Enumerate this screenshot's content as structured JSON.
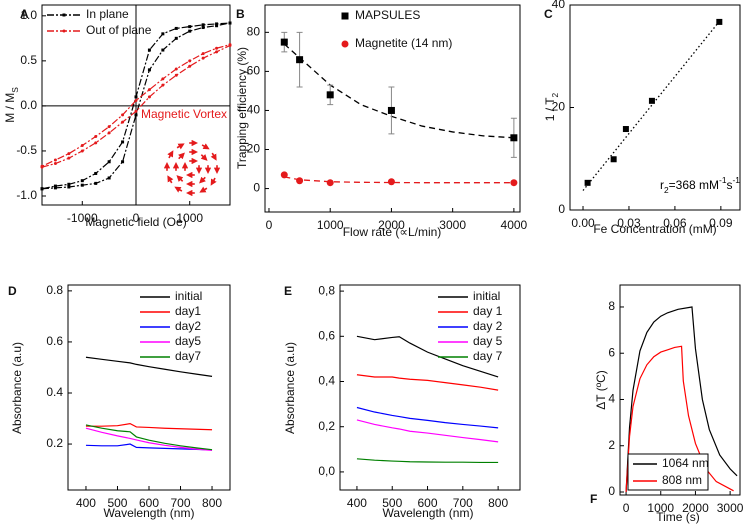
{
  "chart_data": [
    {
      "type": "line",
      "panel": "A",
      "xlabel": "Magnetic field (Oe)",
      "ylabel": [
        {
          "t": "M / M"
        },
        {
          "t": "S",
          "s": "sub"
        }
      ],
      "xlim": [
        -1750,
        1750
      ],
      "ylim": [
        -1.1,
        1.12
      ],
      "xticks": [
        -1000,
        0,
        1000
      ],
      "yticks": [
        {
          "value": -1,
          "label": "-1.0"
        },
        -0.5,
        {
          "value": 0,
          "label": "0.0"
        },
        0.5,
        {
          "value": 1,
          "label": "1.0"
        }
      ],
      "zero_lines": true,
      "annotation": {
        "text": "Magnetic Vortex",
        "color": "#e41a1c"
      },
      "x": [
        -1750,
        -1500,
        -1250,
        -1000,
        -750,
        -500,
        -250,
        0,
        250,
        500,
        750,
        1000,
        1250,
        1500,
        1750,
        1750,
        1500,
        1250,
        1000,
        750,
        500,
        250,
        0,
        -250,
        -500,
        -750,
        -1000,
        -1250,
        -1500,
        -1750
      ],
      "series": [
        {
          "name": "In plane",
          "color": "#000000",
          "line": "dashdot",
          "marker": "square",
          "values": [
            -0.92,
            -0.91,
            -0.9,
            -0.88,
            -0.86,
            -0.8,
            -0.62,
            -0.1,
            0.4,
            0.62,
            0.75,
            0.83,
            0.87,
            0.89,
            0.92,
            0.92,
            0.91,
            0.9,
            0.88,
            0.86,
            0.8,
            0.62,
            0.1,
            -0.4,
            -0.62,
            -0.75,
            -0.83,
            -0.87,
            -0.89,
            -0.92
          ]
        },
        {
          "name": "Out of plane",
          "color": "#e41a1c",
          "line": "dashdot",
          "marker": "circle",
          "values": [
            -0.68,
            -0.64,
            -0.58,
            -0.5,
            -0.41,
            -0.3,
            -0.18,
            -0.06,
            0.1,
            0.23,
            0.34,
            0.44,
            0.53,
            0.6,
            0.67,
            0.68,
            0.64,
            0.58,
            0.5,
            0.41,
            0.3,
            0.18,
            0.06,
            -0.1,
            -0.23,
            -0.34,
            -0.44,
            -0.53,
            -0.6,
            -0.67
          ]
        }
      ]
    },
    {
      "type": "scatter",
      "panel": "B",
      "xlabel": "Flow rate (∝L/min)",
      "ylabel": "Trapping efficiency (%)",
      "xlim": [
        -65,
        4100
      ],
      "ylim": [
        -12,
        94
      ],
      "xticks": [
        0,
        1000,
        2000,
        3000,
        4000
      ],
      "yticks": [
        0,
        20,
        40,
        60,
        80
      ],
      "series": [
        {
          "name": "MAPSULES",
          "color": "#000000",
          "line": "none",
          "marker": "square",
          "x": [
            250,
            500,
            1000,
            2000,
            4000
          ],
          "values": [
            75,
            66,
            48,
            40,
            26
          ],
          "errors": [
            5,
            14,
            5,
            12,
            10
          ]
        },
        {
          "name": "Magnetite (14 nm)",
          "color": "#e41a1c",
          "line": "none",
          "marker": "circle",
          "x": [
            250,
            500,
            1000,
            2000,
            4000
          ],
          "values": [
            7,
            4,
            3,
            3.5,
            3
          ]
        }
      ],
      "fits": [
        {
          "color": "#000000",
          "line": "dash",
          "x": [
            250,
            500,
            1000,
            1500,
            2000,
            2500,
            3000,
            3500,
            4000
          ],
          "values": [
            74,
            67,
            53,
            43,
            37,
            32,
            29,
            27,
            26
          ]
        },
        {
          "color": "#e41a1c",
          "line": "dash",
          "x": [
            250,
            500,
            1000,
            1500,
            2000,
            2500,
            3000,
            3500,
            4000
          ],
          "values": [
            6,
            4.5,
            3.5,
            3.2,
            3.1,
            3,
            3,
            3,
            3
          ]
        }
      ]
    },
    {
      "type": "scatter",
      "panel": "C",
      "xlabel": "Fe Concentration (mM)",
      "ylabel": [
        {
          "t": "1 / T"
        },
        {
          "t": "2",
          "s": "sub"
        }
      ],
      "xlim": [
        -0.0085,
        0.1025
      ],
      "ylim": [
        0,
        40
      ],
      "xticks": [
        {
          "value": 0,
          "label": "0.00"
        },
        0.03,
        0.06,
        0.09
      ],
      "yticks": [
        0,
        20,
        40
      ],
      "annotation": {
        "text": [
          {
            "t": "r"
          },
          {
            "t": "2",
            "s": "sub"
          },
          {
            "t": "=368 mM"
          },
          {
            "t": "-1",
            "s": "super"
          },
          {
            "t": "s"
          },
          {
            "t": "-1",
            "s": "super"
          }
        ],
        "color": "#000000"
      },
      "series": [
        {
          "color": "#000000",
          "line": "none",
          "marker": "square",
          "x": [
            0.003,
            0.02,
            0.028,
            0.045,
            0.089
          ],
          "values": [
            5.3,
            9.9,
            15.8,
            21.3,
            36.7
          ]
        }
      ],
      "fits": [
        {
          "color": "#000000",
          "line": "dot",
          "x": [
            0,
            0.089
          ],
          "values": [
            3.8,
            36.8
          ]
        }
      ]
    },
    {
      "type": "line",
      "panel": "D",
      "xlabel": "Wavelength (nm)",
      "ylabel": "Absorbance (a.u)",
      "xlim": [
        343,
        857
      ],
      "ylim": [
        0.02,
        0.823
      ],
      "xticks": [
        400,
        500,
        600,
        700,
        800
      ],
      "yticks": [
        0.2,
        0.4,
        0.6,
        0.8
      ],
      "x": [
        400,
        450,
        500,
        540,
        560,
        600,
        650,
        700,
        750,
        800
      ],
      "series": [
        {
          "name": "initial",
          "color": "#000000",
          "line": "solid",
          "values": [
            0.54,
            0.532,
            0.524,
            0.518,
            0.512,
            0.503,
            0.493,
            0.483,
            0.474,
            0.465
          ]
        },
        {
          "name": "day1",
          "color": "#ff0000",
          "line": "solid",
          "values": [
            0.27,
            0.27,
            0.272,
            0.28,
            0.267,
            0.265,
            0.262,
            0.26,
            0.258,
            0.256
          ]
        },
        {
          "name": "day2",
          "color": "#0000ff",
          "line": "solid",
          "values": [
            0.195,
            0.193,
            0.193,
            0.2,
            0.187,
            0.185,
            0.183,
            0.181,
            0.179,
            0.177
          ]
        },
        {
          "name": "day5",
          "color": "#ff00ff",
          "line": "solid",
          "values": [
            0.262,
            0.246,
            0.232,
            0.222,
            0.216,
            0.205,
            0.195,
            0.187,
            0.18,
            0.175
          ]
        },
        {
          "name": "day7",
          "color": "#008000",
          "line": "solid",
          "values": [
            0.275,
            0.262,
            0.252,
            0.248,
            0.228,
            0.215,
            0.203,
            0.193,
            0.185,
            0.178
          ]
        }
      ]
    },
    {
      "type": "line",
      "panel": "E",
      "xlabel": "Wavelength (nm)",
      "ylabel": "Absorbance (a.u)",
      "xlim": [
        352,
        862
      ],
      "ylim": [
        -0.08,
        0.827
      ],
      "xticks": [
        400,
        500,
        600,
        700,
        800
      ],
      "yticks": [
        {
          "value": 0,
          "label": "0,0"
        },
        {
          "value": 0.2,
          "label": "0,2"
        },
        {
          "value": 0.4,
          "label": "0,4"
        },
        {
          "value": 0.6,
          "label": "0,6"
        },
        {
          "value": 0.8,
          "label": "0,8"
        }
      ],
      "x": [
        400,
        450,
        500,
        520,
        550,
        600,
        650,
        700,
        750,
        800
      ],
      "series": [
        {
          "name": "initial",
          "color": "#000000",
          "line": "solid",
          "values": [
            0.6,
            0.585,
            0.595,
            0.598,
            0.57,
            0.53,
            0.5,
            0.47,
            0.445,
            0.42
          ]
        },
        {
          "name": "day 1",
          "color": "#ff0000",
          "line": "solid",
          "values": [
            0.43,
            0.42,
            0.42,
            0.415,
            0.41,
            0.405,
            0.395,
            0.385,
            0.375,
            0.362
          ]
        },
        {
          "name": "day 2",
          "color": "#0000ff",
          "line": "solid",
          "values": [
            0.285,
            0.265,
            0.25,
            0.245,
            0.237,
            0.228,
            0.218,
            0.21,
            0.203,
            0.195
          ]
        },
        {
          "name": "day 5",
          "color": "#ff00ff",
          "line": "solid",
          "values": [
            0.23,
            0.21,
            0.195,
            0.19,
            0.18,
            0.172,
            0.162,
            0.152,
            0.143,
            0.133
          ]
        },
        {
          "name": "day 7",
          "color": "#008000",
          "line": "solid",
          "values": [
            0.058,
            0.052,
            0.048,
            0.047,
            0.045,
            0.044,
            0.043,
            0.043,
            0.042,
            0.042
          ]
        }
      ]
    },
    {
      "type": "line",
      "panel": "F",
      "xlabel": "Time (s)",
      "ylabel": "ΔT (ºC)",
      "xlim": [
        -175,
        3285
      ],
      "ylim": [
        -0.13,
        8.95
      ],
      "xticks": [
        0,
        1000,
        2000,
        3000
      ],
      "yticks": [
        0,
        2,
        4,
        6,
        8
      ],
      "series": [
        {
          "name": "1064 nm",
          "color": "#000000",
          "line": "solid",
          "x": [
            0,
            100,
            200,
            400,
            600,
            800,
            1000,
            1200,
            1500,
            1900,
            2000,
            2200,
            2400,
            2700,
            3000,
            3200
          ],
          "values": [
            0,
            2.8,
            4.4,
            6.1,
            6.9,
            7.35,
            7.6,
            7.75,
            7.9,
            8.0,
            6.2,
            4.0,
            2.7,
            1.6,
            1.0,
            0.7
          ]
        },
        {
          "name": "808 nm",
          "color": "#ff0000",
          "line": "solid",
          "x": [
            0,
            100,
            200,
            400,
            600,
            800,
            1000,
            1200,
            1400,
            1600,
            1650,
            1800,
            2000,
            2300,
            2600,
            3100
          ],
          "values": [
            0,
            2.4,
            3.7,
            4.9,
            5.5,
            5.85,
            6.05,
            6.15,
            6.25,
            6.3,
            4.8,
            3.3,
            2.1,
            1.0,
            0.45,
            0.05
          ]
        }
      ]
    }
  ]
}
